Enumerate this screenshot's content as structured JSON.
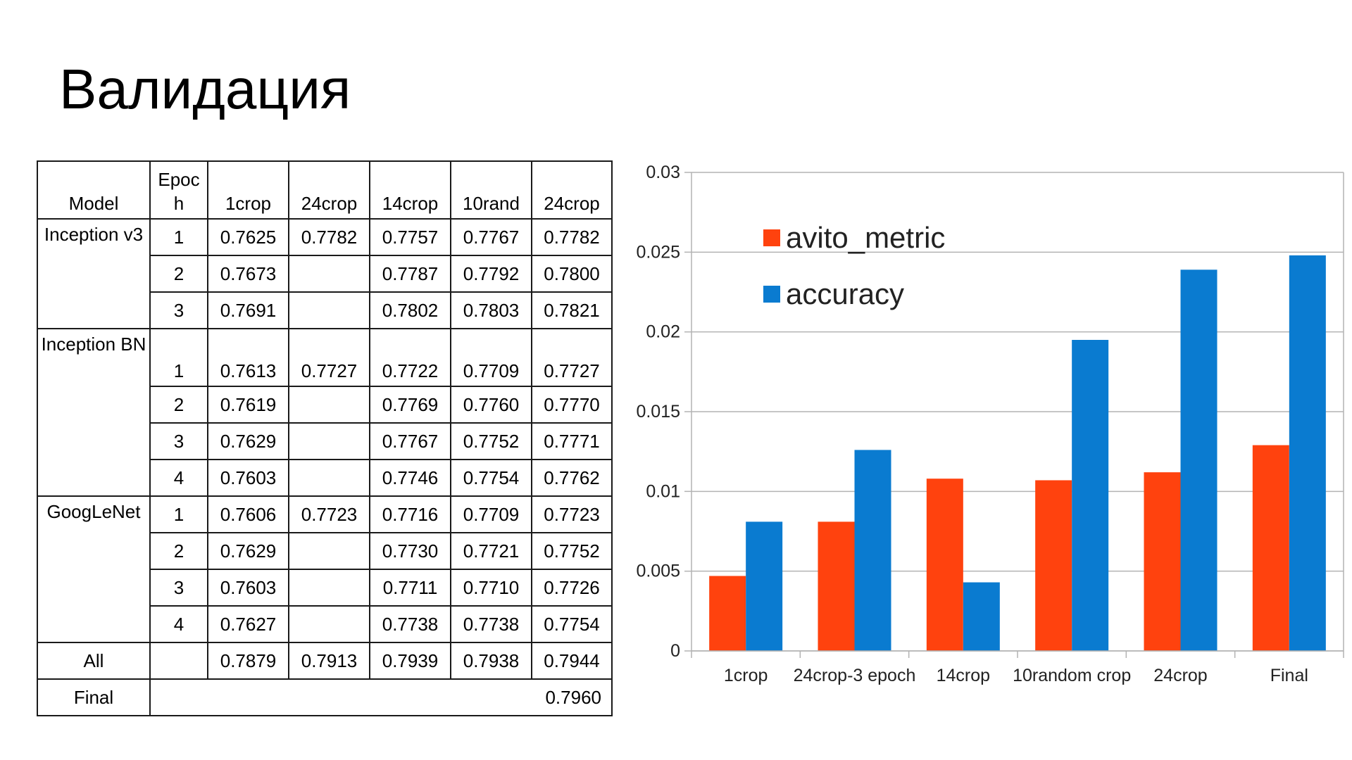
{
  "title": "Валидация",
  "table": {
    "headers": [
      "Model",
      "Epoc h",
      "1crop",
      "24crop",
      "14crop",
      "10rand",
      "24crop"
    ],
    "groups": [
      {
        "model": "Inception v3",
        "rows": [
          {
            "epoch": "1",
            "values": [
              "0.7625",
              "0.7782",
              "0.7757",
              "0.7767",
              "0.7782"
            ]
          },
          {
            "epoch": "2",
            "values": [
              "0.7673",
              "",
              "0.7787",
              "0.7792",
              "0.7800"
            ]
          },
          {
            "epoch": "3",
            "values": [
              "0.7691",
              "",
              "0.7802",
              "0.7803",
              "0.7821"
            ]
          }
        ]
      },
      {
        "model": "Inception BN",
        "rows": [
          {
            "epoch": "1",
            "values": [
              "0.7613",
              "0.7727",
              "0.7722",
              "0.7709",
              "0.7727"
            ]
          },
          {
            "epoch": "2",
            "values": [
              "0.7619",
              "",
              "0.7769",
              "0.7760",
              "0.7770"
            ]
          },
          {
            "epoch": "3",
            "values": [
              "0.7629",
              "",
              "0.7767",
              "0.7752",
              "0.7771"
            ]
          },
          {
            "epoch": "4",
            "values": [
              "0.7603",
              "",
              "0.7746",
              "0.7754",
              "0.7762"
            ]
          }
        ]
      },
      {
        "model": "GoogLeNet",
        "rows": [
          {
            "epoch": "1",
            "values": [
              "0.7606",
              "0.7723",
              "0.7716",
              "0.7709",
              "0.7723"
            ]
          },
          {
            "epoch": "2",
            "values": [
              "0.7629",
              "",
              "0.7730",
              "0.7721",
              "0.7752"
            ]
          },
          {
            "epoch": "3",
            "values": [
              "0.7603",
              "",
              "0.7711",
              "0.7710",
              "0.7726"
            ]
          },
          {
            "epoch": "4",
            "values": [
              "0.7627",
              "",
              "0.7738",
              "0.7738",
              "0.7754"
            ]
          }
        ]
      }
    ],
    "all_row": {
      "model": "All",
      "epoch": "",
      "values": [
        "0.7879",
        "0.7913",
        "0.7939",
        "0.7938",
        "0.7944"
      ]
    },
    "final_row": {
      "model": "Final",
      "value": "0.7960"
    }
  },
  "chart_data": {
    "type": "bar",
    "categories": [
      "1crop",
      "24crop-3 epoch",
      "14crop",
      "10random crop",
      "24crop",
      "Final"
    ],
    "series": [
      {
        "name": "avito_metric",
        "color": "#ff420e",
        "values": [
          0.0047,
          0.0081,
          0.0108,
          0.0107,
          0.0112,
          0.0129
        ]
      },
      {
        "name": "accuracy",
        "color": "#0a7bd0",
        "values": [
          0.0081,
          0.0126,
          0.0043,
          0.0195,
          0.0239,
          0.0248
        ]
      }
    ],
    "ylim": [
      0,
      0.03
    ],
    "yticks": [
      "0",
      "0.005",
      "0.01",
      "0.015",
      "0.02",
      "0.025",
      "0.03"
    ],
    "grid": true,
    "legend": "top-left"
  }
}
